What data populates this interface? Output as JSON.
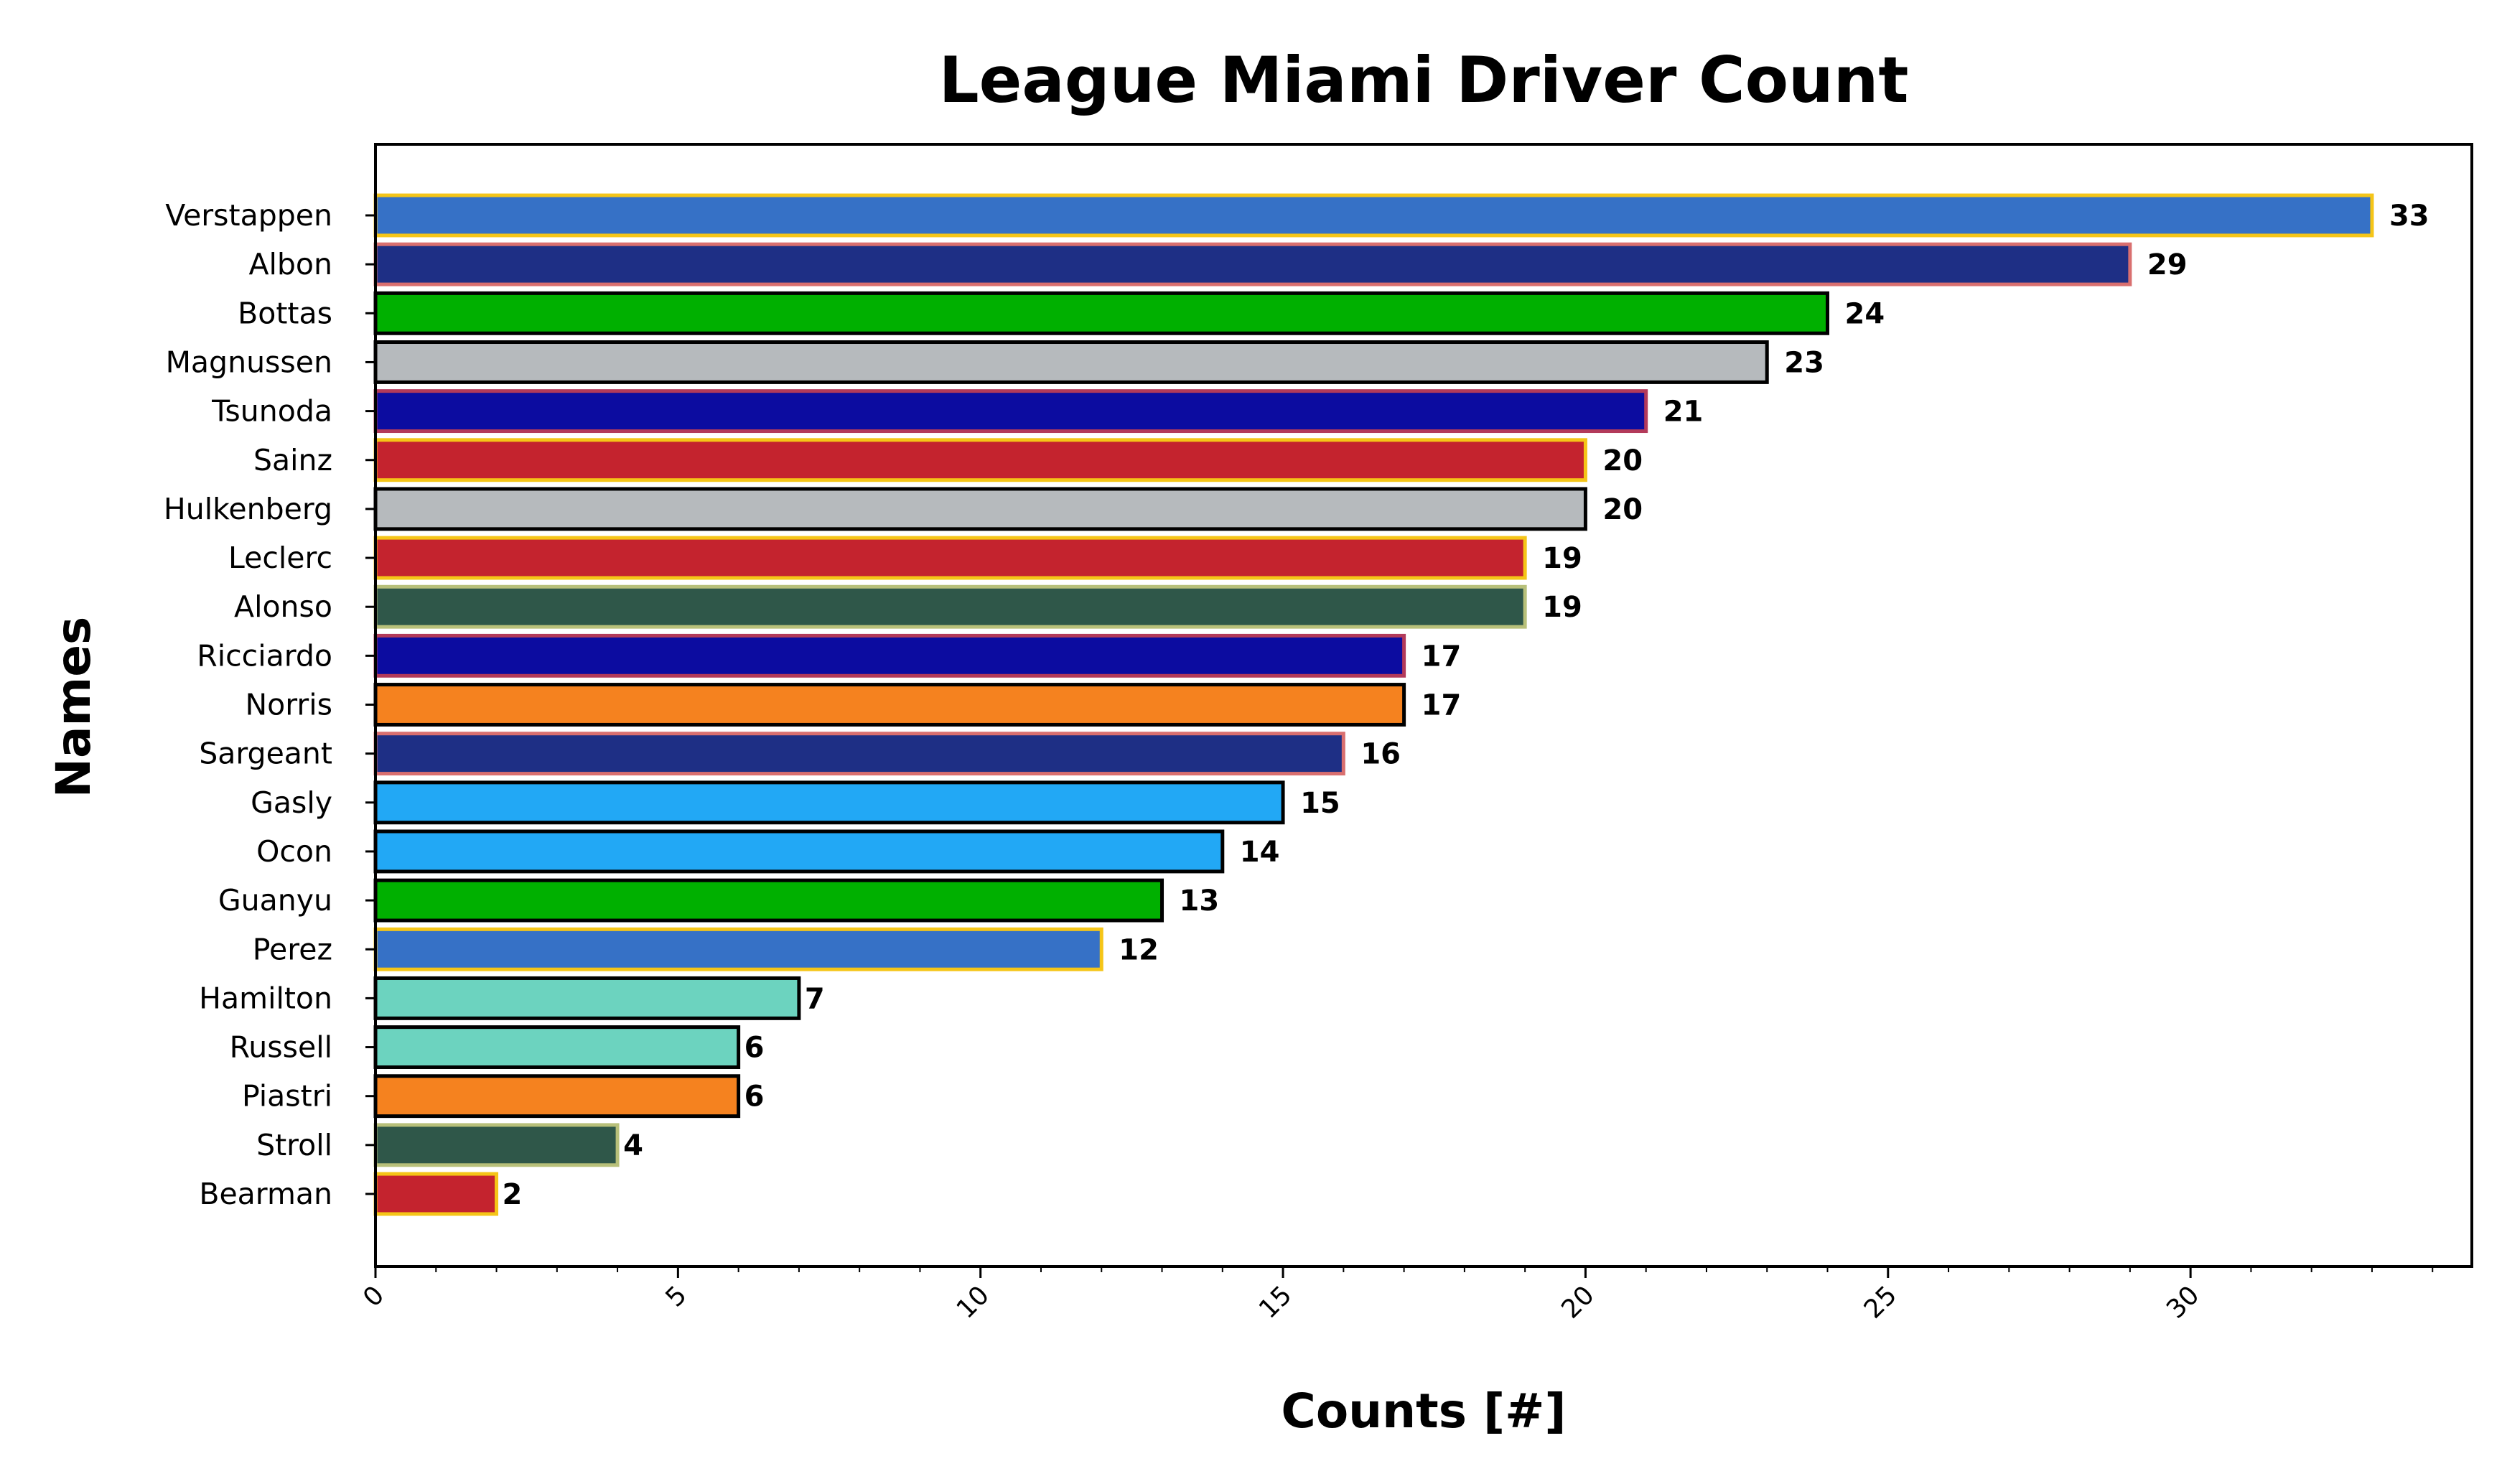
{
  "chart_data": {
    "type": "bar",
    "orientation": "horizontal",
    "title": "League Miami Driver Count",
    "xlabel": "Counts [#]",
    "ylabel": "Names",
    "xlim": [
      0,
      34.65
    ],
    "xticks": [
      0,
      5,
      10,
      15,
      20,
      25,
      30
    ],
    "grid": false,
    "legend": "none",
    "categories": [
      "Verstappen",
      "Albon",
      "Bottas",
      "Magnussen",
      "Tsunoda",
      "Sainz",
      "Hulkenberg",
      "Leclerc",
      "Alonso",
      "Ricciardo",
      "Norris",
      "Sargeant",
      "Gasly",
      "Ocon",
      "Guanyu",
      "Perez",
      "Hamilton",
      "Russell",
      "Piastri",
      "Stroll",
      "Bearman"
    ],
    "values": [
      33,
      29,
      24,
      23,
      21,
      20,
      20,
      19,
      19,
      17,
      17,
      16,
      15,
      14,
      13,
      12,
      7,
      6,
      6,
      4,
      2
    ],
    "value_labels": [
      "33",
      "29",
      "24",
      "23",
      "21",
      "20",
      "20",
      "19",
      "19",
      "17",
      "17",
      "16",
      "15",
      "14",
      "13",
      "12",
      "7",
      "6",
      "6",
      "4",
      "2"
    ],
    "fill_colors": [
      "#3671C6",
      "#1E2F85",
      "#00B000",
      "#B6BABD",
      "#0C0CA0",
      "#C4232E",
      "#B6BABD",
      "#C4232E",
      "#2F5749",
      "#0C0CA0",
      "#F5821F",
      "#1E2F85",
      "#22A8F5",
      "#22A8F5",
      "#00B000",
      "#3671C6",
      "#6CD3BF",
      "#6CD3BF",
      "#F5821F",
      "#2F5749",
      "#C4232E"
    ],
    "edge_colors": [
      "#F5C518",
      "#D96F6F",
      "#000000",
      "#000000",
      "#B33A5A",
      "#F5C518",
      "#000000",
      "#F5C518",
      "#B8C07A",
      "#B33A5A",
      "#000000",
      "#D96F6F",
      "#000000",
      "#000000",
      "#000000",
      "#F5C518",
      "#000000",
      "#000000",
      "#000000",
      "#B8C07A",
      "#F5C518"
    ]
  }
}
